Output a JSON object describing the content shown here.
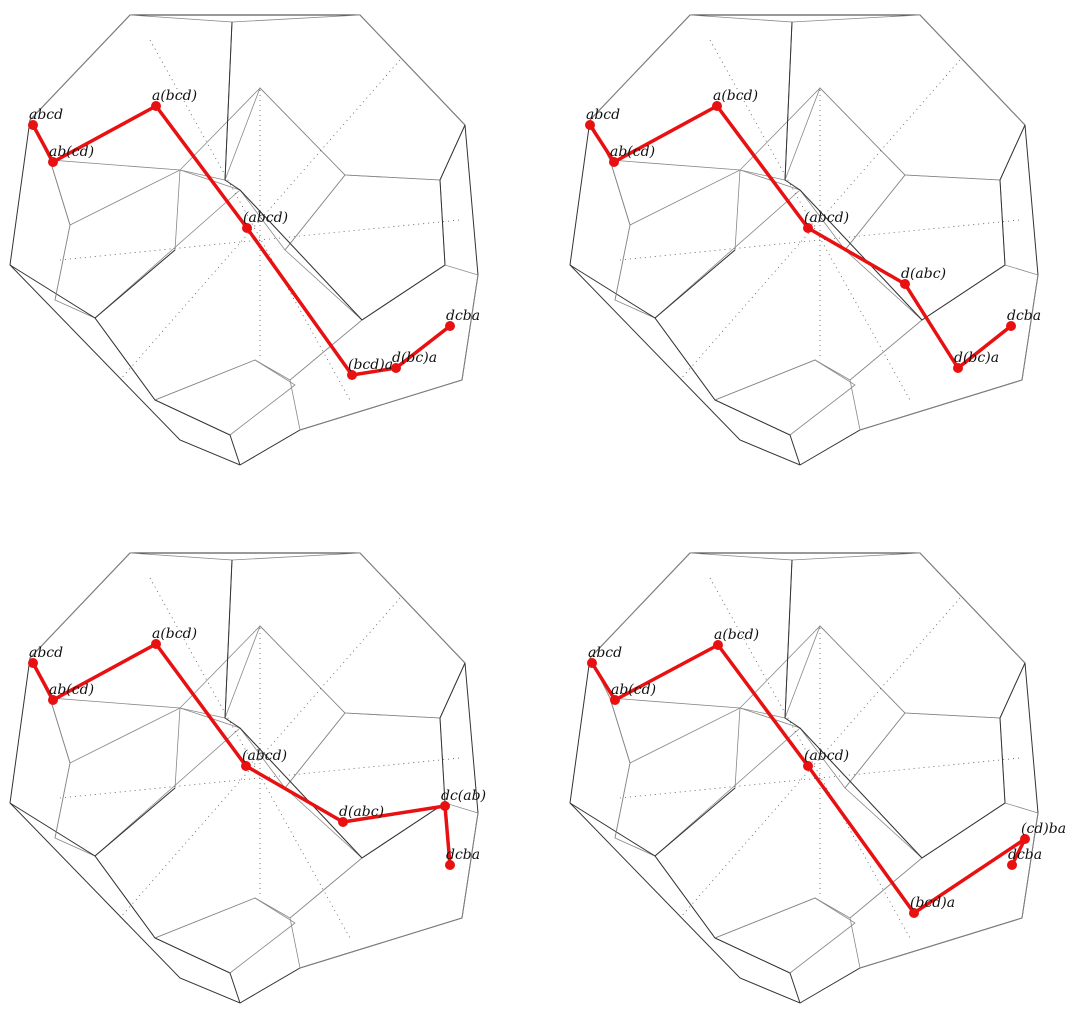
{
  "panels": [
    {
      "path": [
        "abcd",
        "ab(cd)",
        "a(bcd)",
        "(abcd)",
        "(bcd)a",
        "d(bc)a",
        "dcba"
      ]
    },
    {
      "path": [
        "abcd",
        "ab(cd)",
        "a(bcd)",
        "(abcd)",
        "d(abc)",
        "d(bc)a",
        "dcba"
      ]
    },
    {
      "path": [
        "abcd",
        "ab(cd)",
        "a(bcd)",
        "(abcd)",
        "d(abc)",
        "dc(ab)",
        "dcba"
      ]
    },
    {
      "path": [
        "abcd",
        "ab(cd)",
        "a(bcd)",
        "(abcd)",
        "(bcd)a",
        "(cd)ba",
        "dcba"
      ]
    }
  ]
}
